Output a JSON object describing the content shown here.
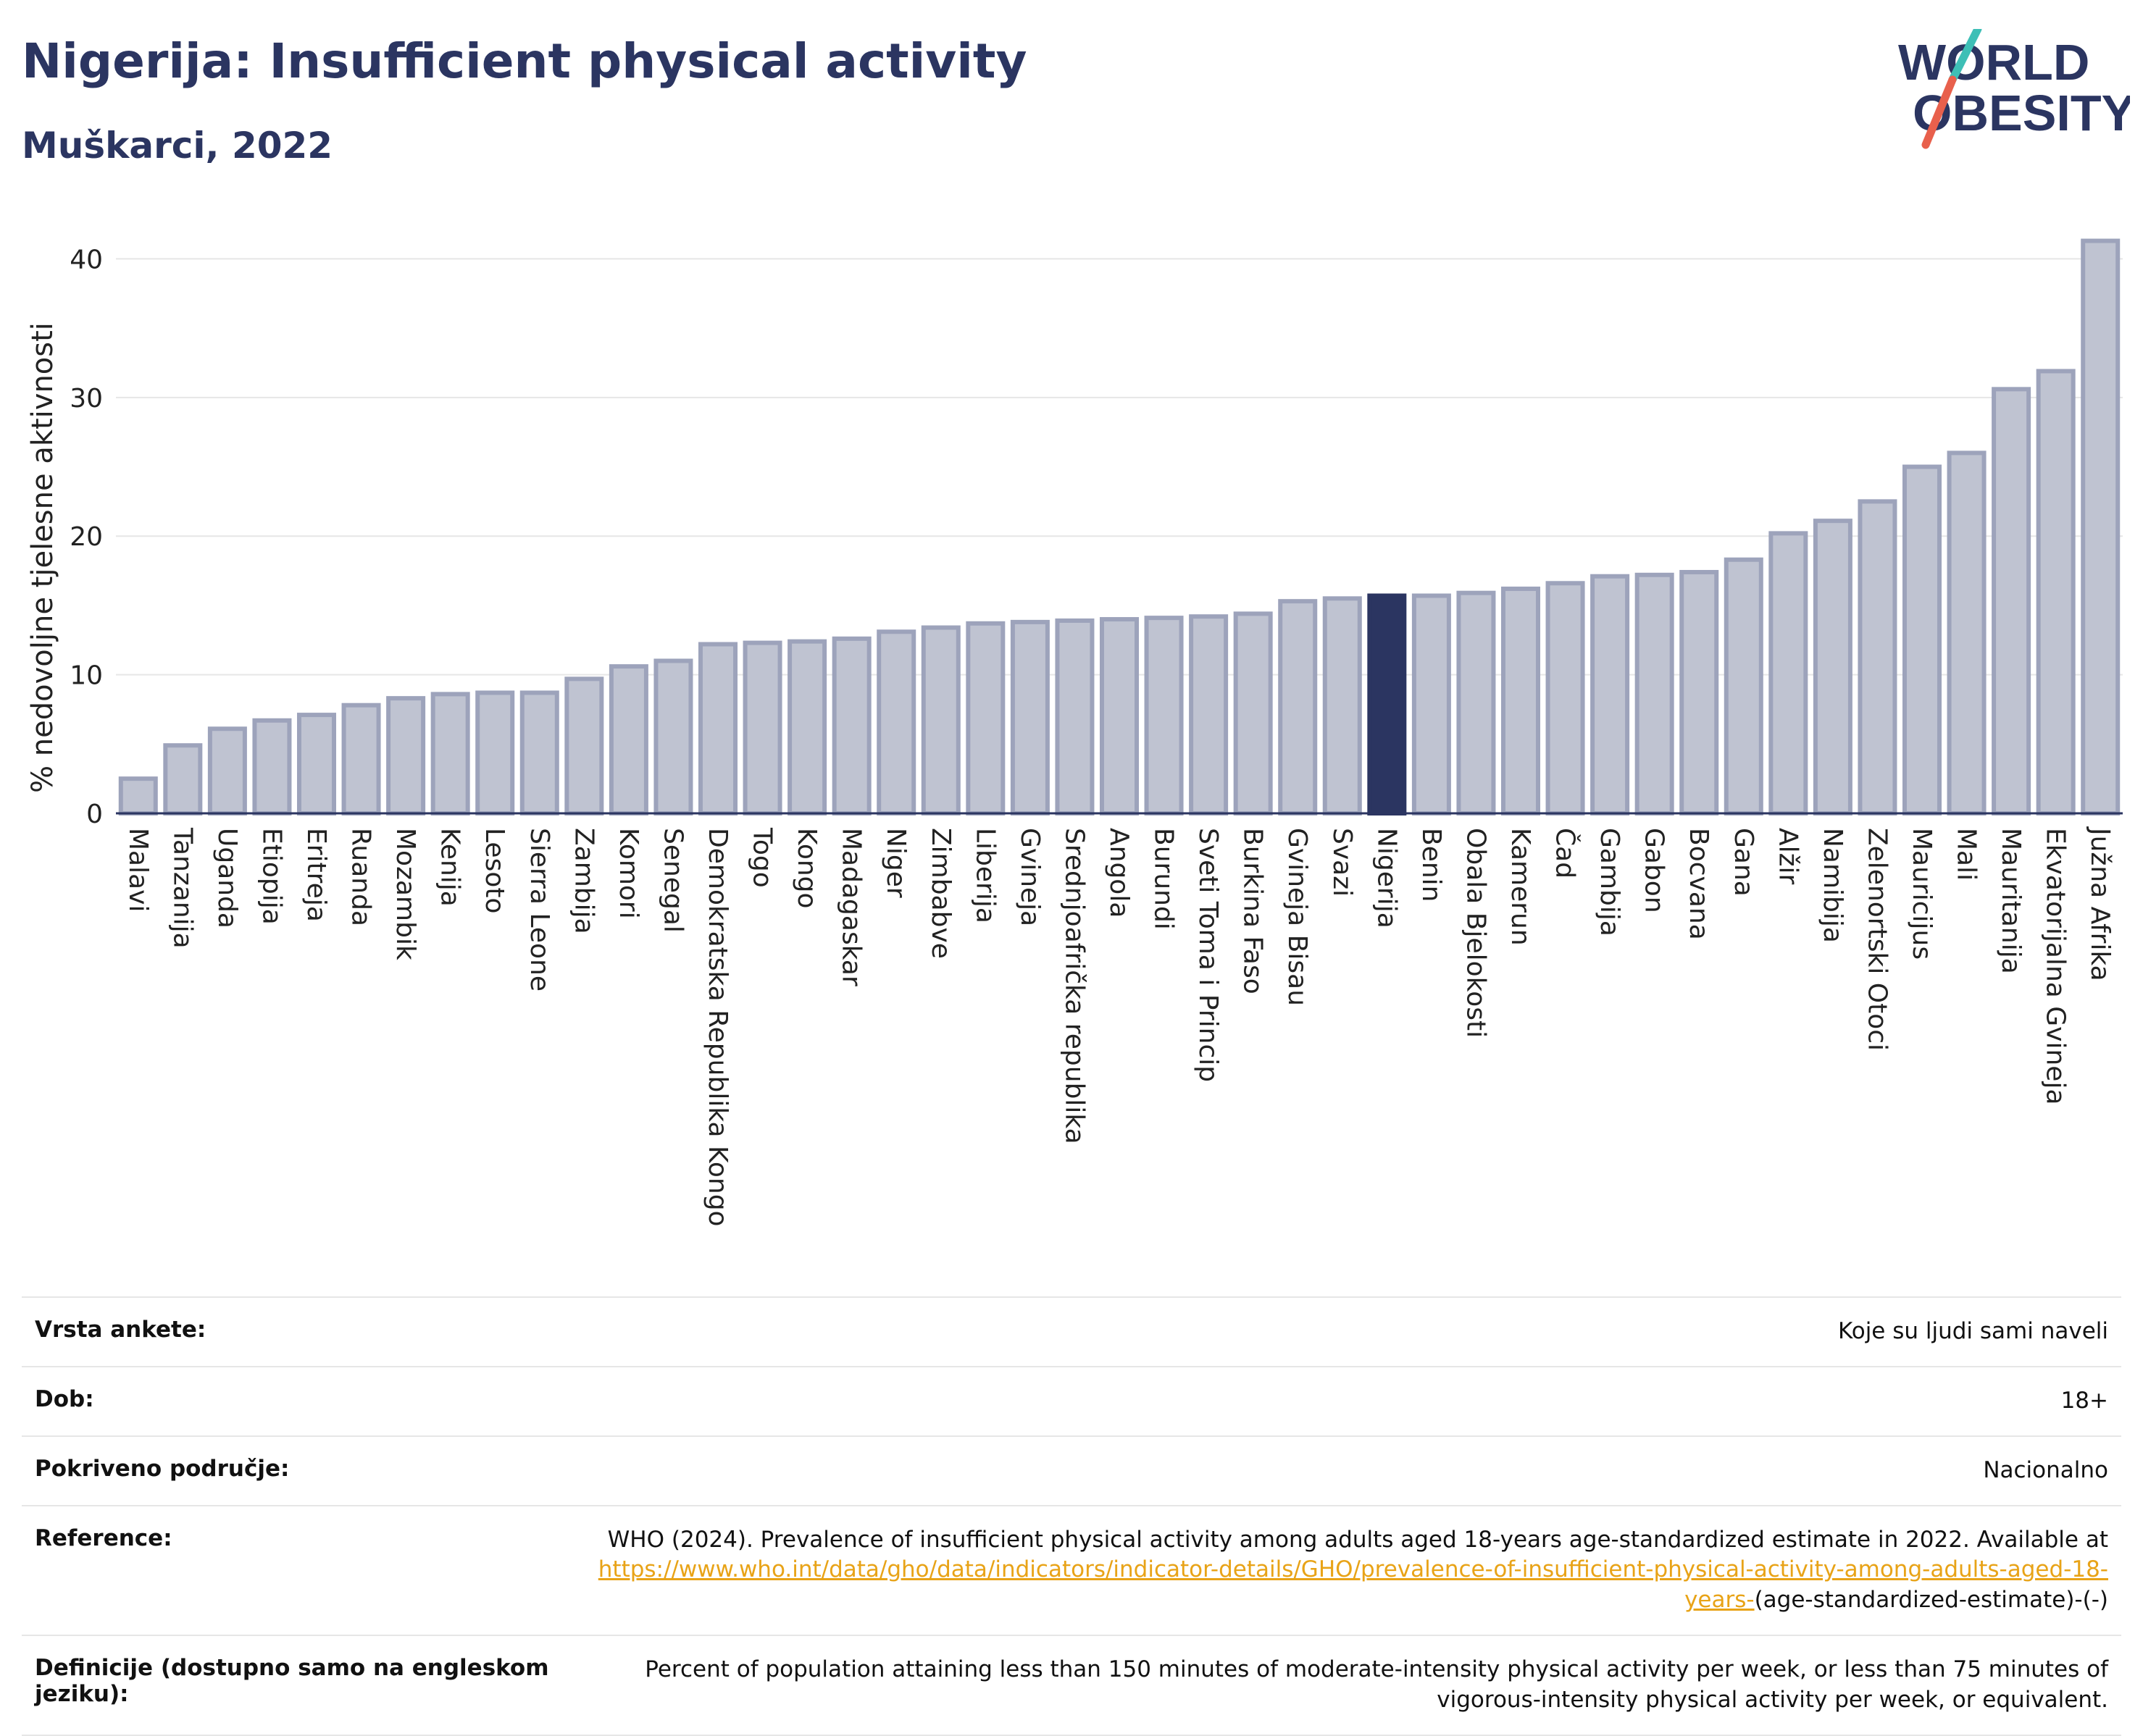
{
  "header": {
    "title": "Nigerija: Insufficient physical activity",
    "subtitle": "Muškarci, 2022"
  },
  "logo": {
    "line1": "WORLD",
    "line2": "OBESITY",
    "accent_colors": [
      "#3ebfb6",
      "#e8604c"
    ]
  },
  "colors": {
    "bar": "#bfc3d1",
    "bar_stroke": "#9da3bb",
    "highlight": "#2b3561"
  },
  "chart_data": {
    "type": "bar",
    "title": "Nigerija: Insufficient physical activity",
    "subtitle": "Muškarci, 2022",
    "ylabel": "% nedovoljne tjelesne aktivnosti",
    "ylim": [
      0,
      43
    ],
    "yticks": [
      0,
      10,
      20,
      30,
      40
    ],
    "highlight": "Nigerija",
    "grid": true,
    "categories": [
      "Malavi",
      "Tanzanija",
      "Uganda",
      "Etiopija",
      "Eritreja",
      "Ruanda",
      "Mozambik",
      "Kenija",
      "Lesoto",
      "Sierra Leone",
      "Zambija",
      "Komori",
      "Senegal",
      "Demokratska Republika Kongo",
      "Togo",
      "Kongo",
      "Madagaskar",
      "Niger",
      "Zimbabve",
      "Liberija",
      "Gvineja",
      "Srednjoafrička republika",
      "Angola",
      "Burundi",
      "Sveti Toma i Princip",
      "Burkina Faso",
      "Gvineja Bisau",
      "Svazi",
      "Nigerija",
      "Benin",
      "Obala Bjelokosti",
      "Kamerun",
      "Čad",
      "Gambija",
      "Gabon",
      "Bocvana",
      "Gana",
      "Alžir",
      "Namibija",
      "Zelenortski Otoci",
      "Mauricijus",
      "Mali",
      "Mauritanija",
      "Ekvatorijalna Gvineja",
      "Južna Afrika"
    ],
    "values": [
      2.5,
      4.9,
      6.1,
      6.7,
      7.1,
      7.8,
      8.3,
      8.6,
      8.7,
      8.7,
      9.7,
      10.6,
      11.0,
      12.2,
      12.3,
      12.4,
      12.6,
      13.1,
      13.4,
      13.7,
      13.8,
      13.9,
      14.0,
      14.1,
      14.2,
      14.4,
      15.3,
      15.5,
      15.7,
      15.7,
      15.9,
      16.2,
      16.6,
      17.1,
      17.2,
      17.4,
      18.3,
      20.2,
      21.1,
      22.5,
      25.0,
      26.0,
      30.6,
      31.9,
      41.3
    ]
  },
  "metadata": [
    {
      "label": "Vrsta ankete:",
      "value": "Koje su ljudi sami naveli"
    },
    {
      "label": "Dob:",
      "value": "18+"
    },
    {
      "label": "Pokriveno područje:",
      "value": "Nacionalno"
    },
    {
      "label": "Reference:",
      "value": "WHO (2024). Prevalence of insufficient physical activity among adults aged 18-years age-standardized estimate in 2022. Available at ",
      "link": "https://www.who.int/data/gho/data/indicators/indicator-details/GHO/prevalence-of-insufficient-physical-activity-among-adults-aged-18-years-",
      "suffix": "(age-standardized-estimate)-(-)"
    },
    {
      "label": "Definicije (dostupno samo na engleskom jeziku):",
      "value": "Percent of population attaining less than 150 minutes of moderate-intensity physical activity per week, or less than 75 minutes of vigorous-intensity physical activity per week, or equivalent."
    }
  ]
}
